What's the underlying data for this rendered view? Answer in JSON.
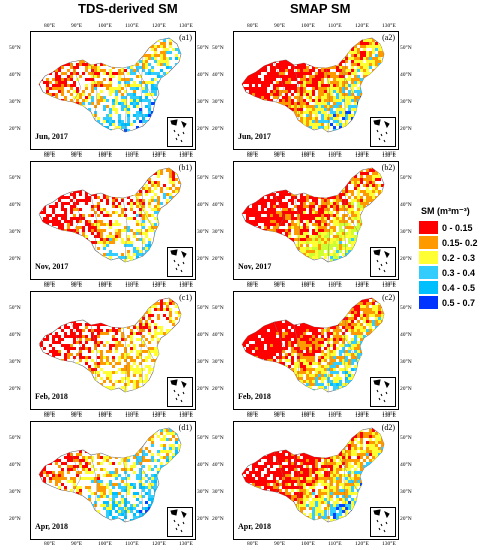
{
  "column_titles": [
    "TDS-derived SM",
    "SMAP SM"
  ],
  "lon_labels": [
    "80°E",
    "90°E",
    "100°E",
    "110°E",
    "120°E",
    "130°E"
  ],
  "lat_labels": [
    "50°N",
    "40°N",
    "30°N",
    "20°N"
  ],
  "panels": [
    {
      "id": "a1",
      "label": "(a1)",
      "date": "Jun, 2017",
      "product": "TDS-derived SM",
      "palette": [
        "#ff0000",
        "#ff0000",
        "#ff9900",
        "#ffff33",
        "#33ccff",
        "#00bfff",
        "#0044ff"
      ]
    },
    {
      "id": "a2",
      "label": "(a2)",
      "date": "Jun, 2017",
      "product": "SMAP SM",
      "palette": [
        "#ff0000",
        "#ff0000",
        "#ff0000",
        "#ff9900",
        "#ffff33",
        "#33ccff",
        "#0044ff"
      ]
    },
    {
      "id": "b1",
      "label": "(b1)",
      "date": "Nov, 2017",
      "product": "TDS-derived SM",
      "palette": [
        "#ff0000",
        "#ff0000",
        "#ff0000",
        "#ff9900",
        "#ffff33",
        "#33ccff",
        "#00bfff"
      ]
    },
    {
      "id": "b2",
      "label": "(b2)",
      "date": "Nov, 2017",
      "product": "SMAP SM",
      "palette": [
        "#ff0000",
        "#ff0000",
        "#ff0000",
        "#ff9900",
        "#ffff33",
        "#ccff33",
        "#33ccff"
      ]
    },
    {
      "id": "c1",
      "label": "(c1)",
      "date": "Feb, 2018",
      "product": "TDS-derived SM",
      "palette": [
        "#ff0000",
        "#ff0000",
        "#ff0000",
        "#ff9900",
        "#ffff33",
        "#ffff33",
        "#ff9900"
      ]
    },
    {
      "id": "c2",
      "label": "(c2)",
      "date": "Feb, 2018",
      "product": "SMAP SM",
      "palette": [
        "#ff0000",
        "#ff0000",
        "#ff0000",
        "#ff9900",
        "#ffff33",
        "#33ccff",
        "#00bfff"
      ]
    },
    {
      "id": "d1",
      "label": "(d1)",
      "date": "Apr, 2018",
      "product": "TDS-derived SM",
      "palette": [
        "#ff0000",
        "#ff0000",
        "#ff9900",
        "#ffff33",
        "#33ccff",
        "#00bfff",
        "#0044ff"
      ]
    },
    {
      "id": "d2",
      "label": "(d2)",
      "date": "Apr, 2018",
      "product": "SMAP SM",
      "palette": [
        "#ff0000",
        "#ff0000",
        "#ff0000",
        "#ff9900",
        "#ffff33",
        "#33ccff",
        "#0044ff"
      ]
    }
  ],
  "legend": {
    "title": "SM (m³m⁻³)",
    "items": [
      {
        "label": "0 - 0.15",
        "color": "#ff0000"
      },
      {
        "label": "0.15- 0.2",
        "color": "#ff9900"
      },
      {
        "label": "0.2 - 0.3",
        "color": "#ffff33"
      },
      {
        "label": "0.3 - 0.4",
        "color": "#33ccff"
      },
      {
        "label": "0.4 - 0.5",
        "color": "#00bfff"
      },
      {
        "label": "0.5 - 0.7",
        "color": "#0033ff"
      }
    ]
  }
}
